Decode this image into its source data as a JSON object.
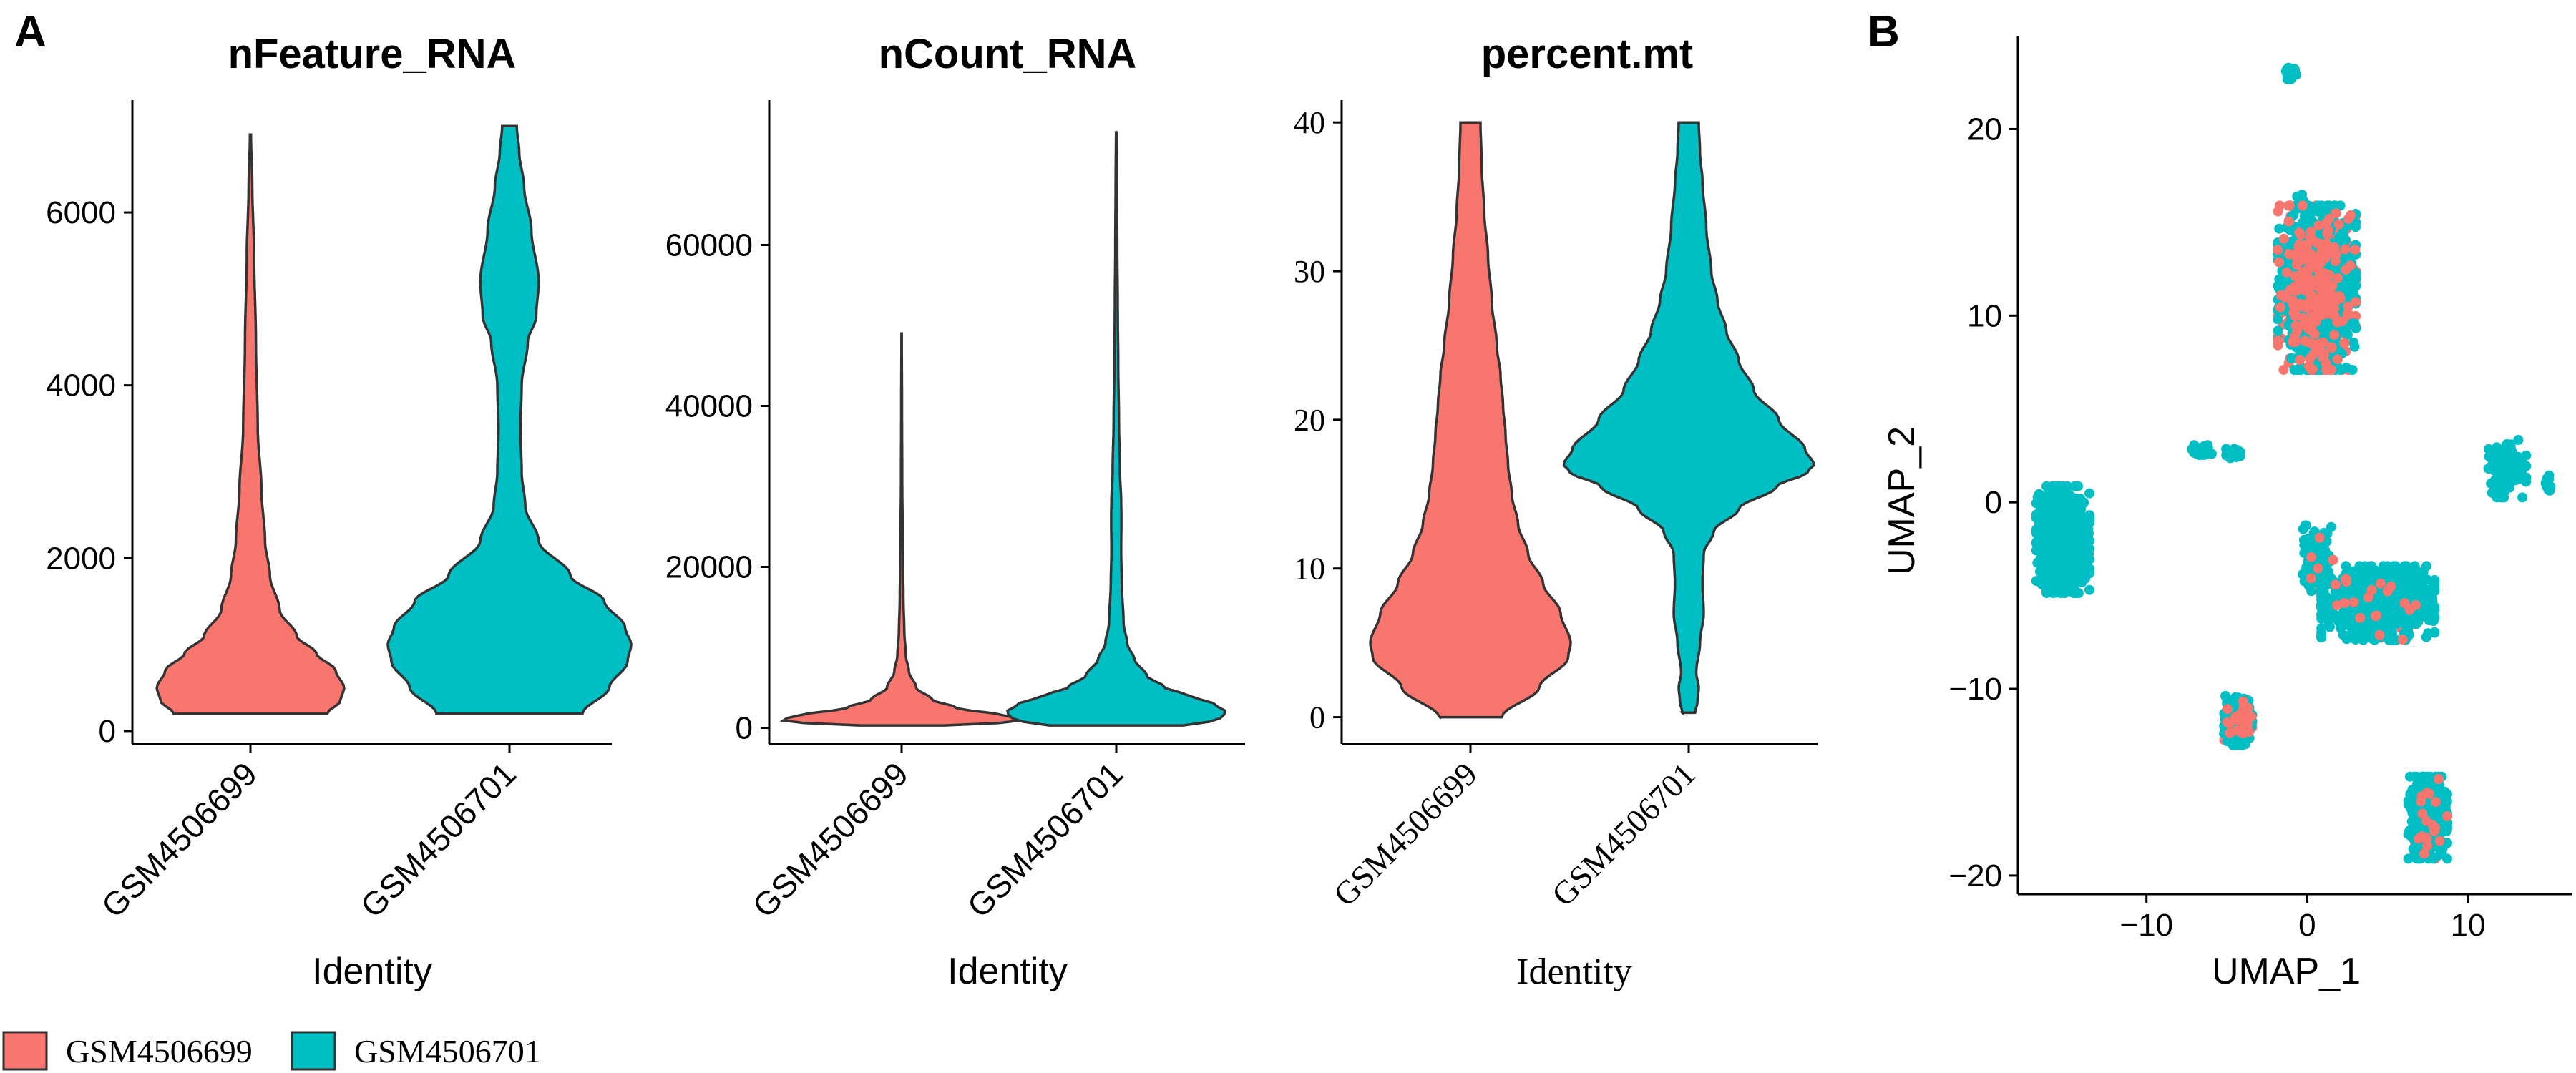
{
  "panel_labels": {
    "a": "A",
    "b": "B"
  },
  "legend": {
    "items": [
      {
        "label": "GSM4506699",
        "color": "#F8766D"
      },
      {
        "label": "GSM4506701",
        "color": "#00BFC4"
      }
    ]
  },
  "chart_data": [
    {
      "type": "violin",
      "title": "nFeature_RNA",
      "xlabel": "Identity",
      "ylabel": "",
      "categories": [
        "GSM4506699",
        "GSM4506701"
      ],
      "colors": [
        "#F8766D",
        "#00BFC4"
      ],
      "ylim": [
        -150,
        7300
      ],
      "yticks": [
        0,
        2000,
        4000,
        6000
      ],
      "ytick_labels": [
        "0",
        "2000",
        "4000",
        "6000"
      ],
      "violins": [
        {
          "name": "GSM4506699",
          "min": 200,
          "max": 6900,
          "profile": [
            [
              200,
              0.63
            ],
            [
              350,
              0.74
            ],
            [
              500,
              0.77
            ],
            [
              700,
              0.7
            ],
            [
              900,
              0.54
            ],
            [
              1100,
              0.38
            ],
            [
              1400,
              0.24
            ],
            [
              1800,
              0.16
            ],
            [
              2200,
              0.12
            ],
            [
              2800,
              0.09
            ],
            [
              3500,
              0.06
            ],
            [
              4500,
              0.045
            ],
            [
              5500,
              0.03
            ],
            [
              6300,
              0.015
            ],
            [
              6900,
              0.004
            ]
          ]
        },
        {
          "name": "GSM4506701",
          "min": 200,
          "max": 7000,
          "profile": [
            [
              200,
              0.6
            ],
            [
              500,
              0.82
            ],
            [
              800,
              0.97
            ],
            [
              1000,
              1.0
            ],
            [
              1200,
              0.95
            ],
            [
              1500,
              0.78
            ],
            [
              1800,
              0.5
            ],
            [
              2200,
              0.24
            ],
            [
              2600,
              0.13
            ],
            [
              3000,
              0.1
            ],
            [
              3500,
              0.09
            ],
            [
              4000,
              0.1
            ],
            [
              4500,
              0.15
            ],
            [
              4800,
              0.22
            ],
            [
              5200,
              0.24
            ],
            [
              5800,
              0.18
            ],
            [
              6300,
              0.12
            ],
            [
              6700,
              0.08
            ],
            [
              7000,
              0.06
            ]
          ]
        }
      ]
    },
    {
      "type": "violin",
      "title": "nCount_RNA",
      "xlabel": "Identity",
      "ylabel": "",
      "categories": [
        "GSM4506699",
        "GSM4506701"
      ],
      "colors": [
        "#F8766D",
        "#00BFC4"
      ],
      "ylim": [
        -2000,
        78000
      ],
      "yticks": [
        0,
        20000,
        40000,
        60000
      ],
      "ytick_labels": [
        "0",
        "20000",
        "40000",
        "60000"
      ],
      "violins": [
        {
          "name": "GSM4506699",
          "min": 300,
          "max": 49000,
          "profile": [
            [
              300,
              0.35
            ],
            [
              600,
              0.8
            ],
            [
              1000,
              1.0
            ],
            [
              1500,
              0.85
            ],
            [
              2500,
              0.45
            ],
            [
              3500,
              0.25
            ],
            [
              5000,
              0.12
            ],
            [
              7000,
              0.06
            ],
            [
              9000,
              0.035
            ],
            [
              12000,
              0.022
            ],
            [
              16000,
              0.015
            ],
            [
              20000,
              0.012
            ],
            [
              25000,
              0.008
            ],
            [
              30000,
              0.005
            ],
            [
              40000,
              0.003
            ],
            [
              49000,
              0.001
            ]
          ]
        },
        {
          "name": "GSM4506701",
          "min": 300,
          "max": 74000,
          "profile": [
            [
              300,
              0.55
            ],
            [
              1000,
              0.85
            ],
            [
              2000,
              0.9
            ],
            [
              3000,
              0.8
            ],
            [
              4000,
              0.6
            ],
            [
              5000,
              0.4
            ],
            [
              6500,
              0.25
            ],
            [
              8500,
              0.15
            ],
            [
              10500,
              0.09
            ],
            [
              13000,
              0.06
            ],
            [
              18000,
              0.045
            ],
            [
              22000,
              0.04
            ],
            [
              26000,
              0.042
            ],
            [
              28000,
              0.04
            ],
            [
              32000,
              0.03
            ],
            [
              38000,
              0.022
            ],
            [
              45000,
              0.016
            ],
            [
              52000,
              0.012
            ],
            [
              60000,
              0.008
            ],
            [
              68000,
              0.005
            ],
            [
              74000,
              0.002
            ]
          ]
        }
      ]
    },
    {
      "type": "violin",
      "title": "percent.mt",
      "xlabel": "Identity",
      "ylabel": "",
      "categories": [
        "GSM4506699",
        "GSM4506701"
      ],
      "colors": [
        "#F8766D",
        "#00BFC4"
      ],
      "ylim": [
        -1.8,
        41.5
      ],
      "yticks": [
        0,
        10,
        20,
        30,
        40
      ],
      "ytick_labels": [
        "0",
        "10",
        "20",
        "30",
        "40"
      ],
      "violins": [
        {
          "name": "GSM4506699",
          "min": 0,
          "max": 40,
          "profile": [
            [
              0,
              0.25
            ],
            [
              2,
              0.55
            ],
            [
              4,
              0.78
            ],
            [
              5,
              0.8
            ],
            [
              7,
              0.72
            ],
            [
              9,
              0.58
            ],
            [
              11,
              0.46
            ],
            [
              13,
              0.38
            ],
            [
              15,
              0.33
            ],
            [
              17,
              0.3
            ],
            [
              19,
              0.28
            ],
            [
              21,
              0.26
            ],
            [
              23,
              0.24
            ],
            [
              25,
              0.21
            ],
            [
              28,
              0.17
            ],
            [
              31,
              0.14
            ],
            [
              34,
              0.11
            ],
            [
              37,
              0.09
            ],
            [
              40,
              0.08
            ]
          ]
        },
        {
          "name": "GSM4506701",
          "min": 0.3,
          "max": 40,
          "profile": [
            [
              0.3,
              0.05
            ],
            [
              1,
              0.07
            ],
            [
              2,
              0.08
            ],
            [
              3,
              0.06
            ],
            [
              5,
              0.09
            ],
            [
              7,
              0.12
            ],
            [
              9,
              0.11
            ],
            [
              11,
              0.12
            ],
            [
              12.5,
              0.2
            ],
            [
              14,
              0.4
            ],
            [
              15.5,
              0.7
            ],
            [
              16.5,
              0.95
            ],
            [
              17,
              1.0
            ],
            [
              18,
              0.93
            ],
            [
              20,
              0.72
            ],
            [
              22,
              0.52
            ],
            [
              24,
              0.4
            ],
            [
              26,
              0.3
            ],
            [
              28,
              0.23
            ],
            [
              30,
              0.18
            ],
            [
              33,
              0.14
            ],
            [
              36,
              0.11
            ],
            [
              38,
              0.09
            ],
            [
              40,
              0.08
            ]
          ]
        }
      ]
    },
    {
      "type": "scatter",
      "title": "",
      "xlabel": "UMAP_1",
      "ylabel": "UMAP_2",
      "xlim": [
        -18,
        16.5
      ],
      "ylim": [
        -21,
        25
      ],
      "xticks": [
        -10,
        0,
        10
      ],
      "xtick_labels": [
        "−10",
        "0",
        "10"
      ],
      "yticks": [
        -20,
        -10,
        0,
        10,
        20
      ],
      "ytick_labels": [
        "−20",
        "−10",
        "0",
        "10",
        "20"
      ],
      "series": [
        {
          "name": "GSM4506699",
          "color": "#F8766D"
        },
        {
          "name": "GSM4506701",
          "color": "#00BFC4"
        }
      ],
      "clusters": [
        {
          "cx": 0.6,
          "cy": 11.5,
          "sx": 1.1,
          "sy": 2.0,
          "n": 1400,
          "frac_699": 0.4
        },
        {
          "cx": 1.0,
          "cy": 8.6,
          "sx": 0.4,
          "sy": 0.6,
          "n": 120,
          "frac_699": 0.2
        },
        {
          "cx": -0.4,
          "cy": 16.1,
          "sx": 0.12,
          "sy": 0.25,
          "n": 30,
          "frac_699": 0.0
        },
        {
          "cx": -1.0,
          "cy": 23.0,
          "sx": 0.15,
          "sy": 0.15,
          "n": 25,
          "frac_699": 0.0
        },
        {
          "cx": -15.2,
          "cy": -2.0,
          "sx": 0.75,
          "sy": 1.3,
          "n": 800,
          "frac_699": 0.0
        },
        {
          "cx": -6.6,
          "cy": 2.8,
          "sx": 0.3,
          "sy": 0.12,
          "n": 50,
          "frac_699": 0.0
        },
        {
          "cx": -4.6,
          "cy": 2.6,
          "sx": 0.2,
          "sy": 0.12,
          "n": 30,
          "frac_699": 0.0
        },
        {
          "cx": 4.4,
          "cy": -5.4,
          "sx": 1.6,
          "sy": 0.9,
          "n": 1000,
          "frac_699": 0.05
        },
        {
          "cx": 0.7,
          "cy": -3.0,
          "sx": 0.5,
          "sy": 0.8,
          "n": 120,
          "frac_699": 0.1
        },
        {
          "cx": 12.3,
          "cy": 1.8,
          "sx": 0.6,
          "sy": 0.7,
          "n": 120,
          "frac_699": 0.0
        },
        {
          "cx": 15.0,
          "cy": 1.0,
          "sx": 0.12,
          "sy": 0.2,
          "n": 20,
          "frac_699": 0.0
        },
        {
          "cx": -4.3,
          "cy": -11.7,
          "sx": 0.4,
          "sy": 0.6,
          "n": 220,
          "frac_699": 0.35
        },
        {
          "cx": 7.5,
          "cy": -16.9,
          "sx": 0.55,
          "sy": 1.0,
          "n": 500,
          "frac_699": 0.1
        }
      ]
    }
  ]
}
